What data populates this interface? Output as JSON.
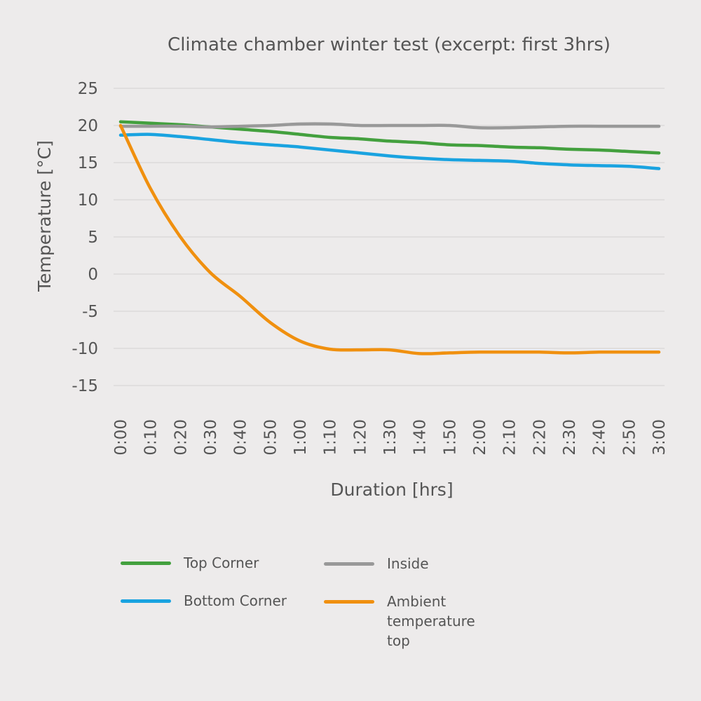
{
  "chart_data": {
    "type": "line",
    "title": "Climate chamber winter test (excerpt: first 3hrs)",
    "xlabel": "Duration [hrs]",
    "ylabel": "Temperature [°C]",
    "ylim": [
      -15,
      25
    ],
    "yticks": [
      25,
      20,
      15,
      10,
      5,
      0,
      -5,
      -10,
      -15
    ],
    "yticklabels": [
      "25",
      "20",
      "15",
      "10",
      "5",
      "0",
      "-5",
      "-10",
      "-15"
    ],
    "grid": true,
    "legend_position": "bottom",
    "categories": [
      "0:00",
      "0:10",
      "0:20",
      "0:30",
      "0:40",
      "0:50",
      "1:00",
      "1:10",
      "1:20",
      "1:30",
      "1:40",
      "1:50",
      "2:00",
      "2:10",
      "2:20",
      "2:30",
      "2:40",
      "2:50",
      "3:00"
    ],
    "series": [
      {
        "name": "Top Corner",
        "color": "#43a03e",
        "values": [
          20.5,
          20.3,
          20.1,
          19.8,
          19.5,
          19.2,
          18.8,
          18.4,
          18.2,
          17.9,
          17.7,
          17.4,
          17.3,
          17.1,
          17.0,
          16.8,
          16.7,
          16.5,
          16.3
        ]
      },
      {
        "name": "Inside",
        "color": "#999999",
        "values": [
          19.9,
          19.9,
          19.9,
          19.8,
          19.9,
          20.0,
          20.2,
          20.2,
          20.0,
          20.0,
          20.0,
          20.0,
          19.7,
          19.7,
          19.8,
          19.9,
          19.9,
          19.9,
          19.9
        ]
      },
      {
        "name": "Bottom Corner",
        "color": "#1aa3e0",
        "values": [
          18.7,
          18.8,
          18.5,
          18.1,
          17.7,
          17.4,
          17.1,
          16.7,
          16.3,
          15.9,
          15.6,
          15.4,
          15.3,
          15.2,
          14.9,
          14.7,
          14.6,
          14.5,
          14.2
        ]
      },
      {
        "name": "Ambient temperature top",
        "color": "#f0900f",
        "values": [
          20.0,
          11.5,
          5.0,
          0.2,
          -3.0,
          -6.5,
          -9.0,
          -10.1,
          -10.2,
          -10.2,
          -10.7,
          -10.6,
          -10.5,
          -10.5,
          -10.5,
          -10.6,
          -10.5,
          -10.5,
          -10.5
        ]
      }
    ]
  }
}
